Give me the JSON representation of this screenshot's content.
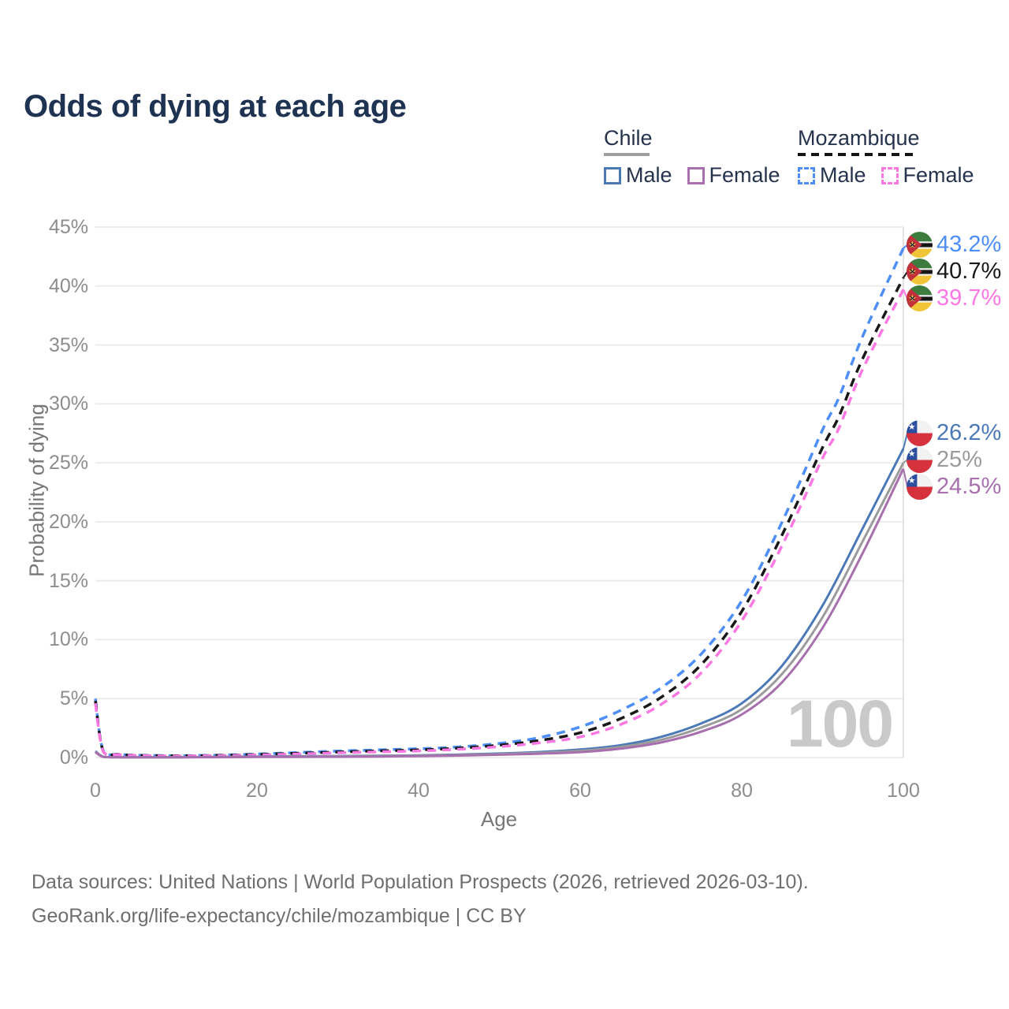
{
  "title": "Odds of dying at each age",
  "watermark": "100",
  "legend": {
    "groups": [
      {
        "country": "Chile",
        "underline_style": "solid",
        "underline_color": "#9e9e9e",
        "items": [
          {
            "label": "Male",
            "color": "#4b79b7",
            "dash": false
          },
          {
            "label": "Female",
            "color": "#a76fad",
            "dash": false
          }
        ]
      },
      {
        "country": "Mozambique",
        "underline_style": "dashed",
        "underline_color": "#141414",
        "items": [
          {
            "label": "Male",
            "color": "#4d8ef7",
            "dash": true
          },
          {
            "label": "Female",
            "color": "#fb78e2",
            "dash": true
          }
        ]
      }
    ]
  },
  "footer": {
    "line1": "Data sources: United Nations | World Population Prospects (2026, retrieved 2026-03-10).",
    "line2": "GeoRank.org/life-expectancy/chile/mozambique | CC BY"
  },
  "chart_data": {
    "type": "line",
    "title": "Odds of dying at each age",
    "xlabel": "Age",
    "ylabel": "Probability of dying",
    "xlim": [
      0,
      100
    ],
    "ylim": [
      0,
      45
    ],
    "x_ticks": [
      0,
      20,
      40,
      60,
      80,
      100
    ],
    "y_ticks": [
      0,
      5,
      10,
      15,
      20,
      25,
      30,
      35,
      40,
      45
    ],
    "y_tick_suffix": "%",
    "grid": "horizontal",
    "legend_position": "top-right",
    "series": [
      {
        "id": "mozambique-male",
        "name": "Mozambique Male",
        "group": "Mozambique",
        "sex": "male",
        "color": "#4d8ef7",
        "dash": "dashed",
        "flag": "mozambique",
        "end_label": "43.2%",
        "points": [
          [
            0,
            5.0
          ],
          [
            1,
            0.5
          ],
          [
            3,
            0.28
          ],
          [
            5,
            0.2
          ],
          [
            10,
            0.16
          ],
          [
            15,
            0.2
          ],
          [
            20,
            0.3
          ],
          [
            25,
            0.42
          ],
          [
            30,
            0.55
          ],
          [
            35,
            0.65
          ],
          [
            40,
            0.75
          ],
          [
            45,
            0.9
          ],
          [
            50,
            1.2
          ],
          [
            55,
            1.7
          ],
          [
            60,
            2.6
          ],
          [
            65,
            4.0
          ],
          [
            70,
            5.9
          ],
          [
            75,
            8.8
          ],
          [
            80,
            13.3
          ],
          [
            85,
            20.0
          ],
          [
            90,
            27.8
          ],
          [
            92,
            30.5
          ],
          [
            95,
            35.8
          ],
          [
            100,
            43.2
          ]
        ]
      },
      {
        "id": "mozambique-total",
        "name": "Mozambique (both sexes)",
        "group": "Mozambique",
        "sex": "total",
        "color": "#181818",
        "dash": "dashed",
        "flag": "mozambique",
        "end_label": "40.7%",
        "points": [
          [
            0,
            4.8
          ],
          [
            1,
            0.48
          ],
          [
            3,
            0.27
          ],
          [
            5,
            0.19
          ],
          [
            10,
            0.15
          ],
          [
            15,
            0.18
          ],
          [
            20,
            0.26
          ],
          [
            25,
            0.36
          ],
          [
            30,
            0.47
          ],
          [
            35,
            0.56
          ],
          [
            40,
            0.65
          ],
          [
            45,
            0.8
          ],
          [
            50,
            1.05
          ],
          [
            55,
            1.45
          ],
          [
            60,
            2.1
          ],
          [
            65,
            3.3
          ],
          [
            70,
            5.1
          ],
          [
            75,
            7.9
          ],
          [
            80,
            12.4
          ],
          [
            85,
            18.9
          ],
          [
            90,
            26.3
          ],
          [
            92,
            28.9
          ],
          [
            95,
            33.9
          ],
          [
            100,
            40.7
          ]
        ]
      },
      {
        "id": "mozambique-female",
        "name": "Mozambique Female",
        "group": "Mozambique",
        "sex": "female",
        "color": "#fb78e2",
        "dash": "dashed",
        "flag": "mozambique",
        "end_label": "39.7%",
        "points": [
          [
            0,
            4.6
          ],
          [
            1,
            0.46
          ],
          [
            3,
            0.25
          ],
          [
            5,
            0.17
          ],
          [
            10,
            0.13
          ],
          [
            15,
            0.16
          ],
          [
            20,
            0.22
          ],
          [
            25,
            0.3
          ],
          [
            30,
            0.4
          ],
          [
            35,
            0.48
          ],
          [
            40,
            0.56
          ],
          [
            45,
            0.7
          ],
          [
            50,
            0.92
          ],
          [
            55,
            1.25
          ],
          [
            60,
            1.75
          ],
          [
            65,
            2.8
          ],
          [
            70,
            4.5
          ],
          [
            75,
            7.2
          ],
          [
            80,
            11.6
          ],
          [
            85,
            18.0
          ],
          [
            90,
            25.4
          ],
          [
            92,
            27.9
          ],
          [
            95,
            33.0
          ],
          [
            100,
            39.7
          ]
        ]
      },
      {
        "id": "chile-male",
        "name": "Chile Male",
        "group": "Chile",
        "sex": "male",
        "color": "#4b79b7",
        "dash": "solid",
        "flag": "chile",
        "end_label": "26.2%",
        "points": [
          [
            0,
            0.55
          ],
          [
            1,
            0.06
          ],
          [
            3,
            0.03
          ],
          [
            5,
            0.025
          ],
          [
            10,
            0.025
          ],
          [
            15,
            0.05
          ],
          [
            20,
            0.09
          ],
          [
            25,
            0.11
          ],
          [
            30,
            0.13
          ],
          [
            35,
            0.15
          ],
          [
            40,
            0.19
          ],
          [
            45,
            0.25
          ],
          [
            50,
            0.34
          ],
          [
            55,
            0.47
          ],
          [
            60,
            0.68
          ],
          [
            65,
            1.05
          ],
          [
            70,
            1.75
          ],
          [
            75,
            2.9
          ],
          [
            80,
            4.6
          ],
          [
            85,
            7.8
          ],
          [
            90,
            12.9
          ],
          [
            95,
            19.5
          ],
          [
            100,
            26.2
          ]
        ]
      },
      {
        "id": "chile-total",
        "name": "Chile (both sexes)",
        "group": "Chile",
        "sex": "total",
        "color": "#9b9b9b",
        "dash": "solid",
        "flag": "chile",
        "end_label": "25%",
        "points": [
          [
            0,
            0.5
          ],
          [
            1,
            0.055
          ],
          [
            3,
            0.025
          ],
          [
            5,
            0.022
          ],
          [
            10,
            0.022
          ],
          [
            15,
            0.04
          ],
          [
            20,
            0.065
          ],
          [
            25,
            0.08
          ],
          [
            30,
            0.1
          ],
          [
            35,
            0.12
          ],
          [
            40,
            0.155
          ],
          [
            45,
            0.21
          ],
          [
            50,
            0.29
          ],
          [
            55,
            0.4
          ],
          [
            60,
            0.57
          ],
          [
            65,
            0.9
          ],
          [
            70,
            1.5
          ],
          [
            75,
            2.55
          ],
          [
            80,
            4.1
          ],
          [
            85,
            7.1
          ],
          [
            90,
            11.9
          ],
          [
            95,
            18.4
          ],
          [
            100,
            25.0
          ]
        ]
      },
      {
        "id": "chile-female",
        "name": "Chile Female",
        "group": "Chile",
        "sex": "female",
        "color": "#a76fad",
        "dash": "solid",
        "flag": "chile",
        "end_label": "24.5%",
        "points": [
          [
            0,
            0.45
          ],
          [
            1,
            0.05
          ],
          [
            3,
            0.02
          ],
          [
            5,
            0.02
          ],
          [
            10,
            0.02
          ],
          [
            15,
            0.03
          ],
          [
            20,
            0.045
          ],
          [
            25,
            0.055
          ],
          [
            30,
            0.07
          ],
          [
            35,
            0.09
          ],
          [
            40,
            0.12
          ],
          [
            45,
            0.17
          ],
          [
            50,
            0.24
          ],
          [
            55,
            0.33
          ],
          [
            60,
            0.46
          ],
          [
            65,
            0.75
          ],
          [
            70,
            1.28
          ],
          [
            75,
            2.2
          ],
          [
            80,
            3.65
          ],
          [
            85,
            6.4
          ],
          [
            90,
            11.0
          ],
          [
            95,
            17.4
          ],
          [
            100,
            24.5
          ]
        ]
      }
    ]
  }
}
